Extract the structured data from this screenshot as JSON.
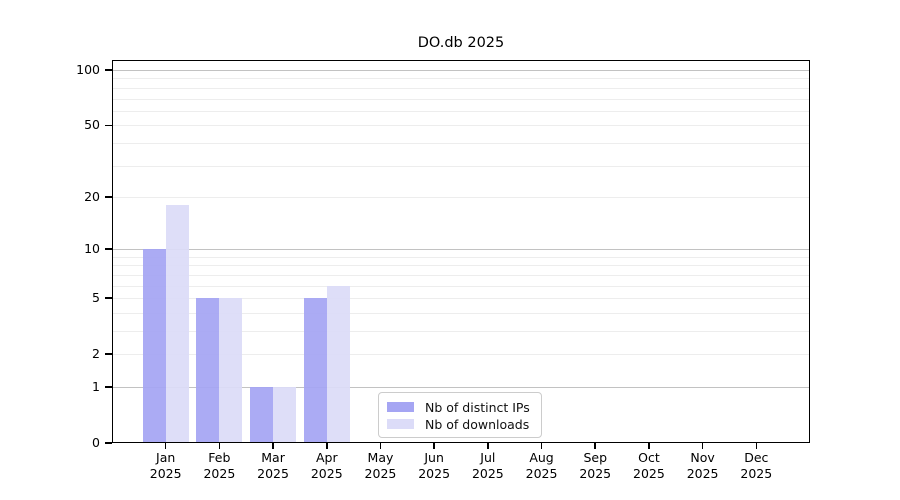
{
  "chart_data": {
    "type": "bar",
    "title": "DO.db 2025",
    "categories": [
      "Jan",
      "Feb",
      "Mar",
      "Apr",
      "May",
      "Jun",
      "Jul",
      "Aug",
      "Sep",
      "Oct",
      "Nov",
      "Dec"
    ],
    "x_tick_year": "2025",
    "series": [
      {
        "name": "Nb of distinct IPs",
        "color": "#a5a5f3",
        "values": [
          10,
          5,
          1,
          5,
          0,
          0,
          0,
          0,
          0,
          0,
          0,
          0
        ]
      },
      {
        "name": "Nb of downloads",
        "color": "#dcdcf8",
        "values": [
          18,
          5,
          1,
          6,
          0,
          0,
          0,
          0,
          0,
          0,
          0,
          0
        ]
      }
    ],
    "yscale": "log10(1+v)",
    "y_tick_labels": [
      "0",
      "1",
      "2",
      "5",
      "10",
      "20",
      "50",
      "100"
    ],
    "y_ticks": [
      0,
      1,
      2,
      5,
      10,
      20,
      50,
      100
    ],
    "ylim": [
      0,
      113.4
    ],
    "xlabel": "",
    "ylabel": "",
    "grid": {
      "major_values": [
        1,
        10,
        100
      ],
      "minor_gridlines": true,
      "minor_color": "#ededed",
      "major_color": "#c2c2c2"
    },
    "legend": {
      "position": "lower-center-inside",
      "entries": [
        "Nb of distinct IPs",
        "Nb of downloads"
      ]
    }
  }
}
